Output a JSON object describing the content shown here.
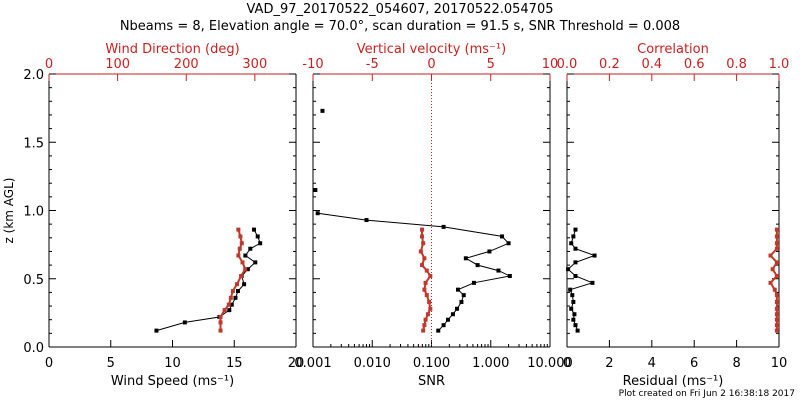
{
  "header": {
    "title": "VAD_97_20170522_054607, 20170522.054705",
    "subtitle": "Nbeams = 8, Elevation angle = 70.0°, scan duration = 91.5 s, SNR Threshold = 0.008"
  },
  "footer": "Plot created on Fri Jun  2 16:38:18 2017",
  "colors": {
    "axis": "#000000",
    "red_axis": "#cc1f1f",
    "red_series": "#c0392b",
    "black_series": "#000000"
  },
  "chart_data": [
    {
      "type": "line",
      "panel": "left",
      "ylabel": "z (km AGL)",
      "ylim": [
        0.0,
        2.0
      ],
      "yticks": [
        0.0,
        0.5,
        1.0,
        1.5,
        2.0
      ],
      "ytick_labels": [
        "0.0",
        "0.5",
        "1.0",
        "1.5",
        "2.0"
      ],
      "xlabel_bottom": "Wind Speed (ms⁻¹)",
      "xlim_bottom": [
        0,
        20
      ],
      "xticks_bottom": [
        0,
        5,
        10,
        15,
        20
      ],
      "xlabel_top": "Wind Direction (deg)",
      "xlim_top": [
        0,
        360
      ],
      "xticks_top": [
        0,
        100,
        200,
        300
      ],
      "series": [
        {
          "axis": "bottom",
          "color": "#000000",
          "z": [
            0.12,
            0.18,
            0.22,
            0.27,
            0.31,
            0.36,
            0.41,
            0.46,
            0.52,
            0.57,
            0.62,
            0.67,
            0.72,
            0.76,
            0.81,
            0.86
          ],
          "values": [
            8.7,
            11.0,
            13.8,
            14.6,
            14.8,
            15.1,
            15.3,
            15.8,
            15.6,
            16.1,
            16.7,
            15.9,
            16.3,
            17.1,
            16.9,
            16.6
          ]
        },
        {
          "axis": "top",
          "color": "#c0392b",
          "z": [
            0.12,
            0.18,
            0.22,
            0.27,
            0.31,
            0.36,
            0.41,
            0.46,
            0.52,
            0.57,
            0.62,
            0.67,
            0.72,
            0.76,
            0.81,
            0.86
          ],
          "values": [
            250,
            250,
            250,
            256,
            262,
            265,
            268,
            274,
            280,
            286,
            282,
            276,
            278,
            281,
            279,
            276
          ]
        }
      ]
    },
    {
      "type": "line",
      "panel": "middle",
      "ylim": [
        0.0,
        2.0
      ],
      "xlabel_bottom": "SNR",
      "xscale_bottom": "log",
      "xlim_bottom": [
        0.001,
        10.0
      ],
      "xticks_bottom": [
        0.001,
        0.01,
        0.1,
        1.0,
        10.0
      ],
      "xtick_labels_bottom": [
        "0.001",
        "0.010",
        "0.100",
        "1.000",
        "10.000"
      ],
      "xlabel_top": "Vertical velocity (ms⁻¹)",
      "xlim_top": [
        -10,
        10
      ],
      "xticks_top": [
        -10,
        -5,
        0,
        5,
        10
      ],
      "reference_line_top": 0,
      "series": [
        {
          "axis": "bottom",
          "color": "#000000",
          "z": [
            0.12,
            0.16,
            0.2,
            0.24,
            0.28,
            0.33,
            0.38,
            0.42,
            0.47,
            0.52,
            0.56,
            0.6,
            0.65,
            0.7,
            0.76,
            0.81,
            0.88,
            0.93,
            0.98
          ],
          "values": [
            0.13,
            0.16,
            0.19,
            0.23,
            0.27,
            0.32,
            0.35,
            0.28,
            0.52,
            2.1,
            1.35,
            0.6,
            0.38,
            0.95,
            2.0,
            1.55,
            0.16,
            0.008,
            0.0012
          ]
        },
        {
          "axis": "top",
          "color": "#000000",
          "markers_only": true,
          "z": [
            1.15,
            1.73
          ],
          "values": [
            -9.8,
            -9.2
          ]
        },
        {
          "axis": "top",
          "color": "#c0392b",
          "z": [
            0.12,
            0.16,
            0.2,
            0.24,
            0.28,
            0.33,
            0.38,
            0.42,
            0.47,
            0.52,
            0.56,
            0.6,
            0.65,
            0.7,
            0.76,
            0.81,
            0.86
          ],
          "values": [
            -0.7,
            -0.6,
            -0.5,
            -0.3,
            -0.1,
            -0.2,
            -0.4,
            -0.6,
            -0.5,
            -0.1,
            -0.4,
            -0.8,
            -0.6,
            -0.9,
            -0.7,
            -0.8,
            -0.8
          ]
        }
      ]
    },
    {
      "type": "line",
      "panel": "right",
      "ylim": [
        0.0,
        2.0
      ],
      "xlabel_bottom": "Residual (ms⁻¹)",
      "xlim_bottom": [
        0,
        10
      ],
      "xticks_bottom": [
        0,
        2,
        4,
        6,
        8,
        10
      ],
      "xlabel_top": "Correlation",
      "xlim_top": [
        0.0,
        1.0
      ],
      "xticks_top": [
        0.0,
        0.2,
        0.4,
        0.6,
        0.8,
        1.0
      ],
      "xtick_labels_top": [
        "0.0",
        "0.2",
        "0.4",
        "0.6",
        "0.8",
        "1.0"
      ],
      "series": [
        {
          "axis": "bottom",
          "color": "#000000",
          "z": [
            0.12,
            0.16,
            0.2,
            0.24,
            0.28,
            0.33,
            0.38,
            0.42,
            0.47,
            0.52,
            0.57,
            0.62,
            0.67,
            0.72,
            0.76,
            0.81,
            0.86
          ],
          "values": [
            0.5,
            0.4,
            0.3,
            0.35,
            0.2,
            0.3,
            0.25,
            0.15,
            1.2,
            0.4,
            0.05,
            0.4,
            1.3,
            0.4,
            0.2,
            0.3,
            0.4
          ]
        },
        {
          "axis": "top",
          "color": "#c0392b",
          "z": [
            0.12,
            0.16,
            0.2,
            0.24,
            0.28,
            0.33,
            0.38,
            0.42,
            0.47,
            0.52,
            0.57,
            0.62,
            0.67,
            0.72,
            0.76,
            0.81,
            0.86
          ],
          "values": [
            0.99,
            0.99,
            0.99,
            0.99,
            0.99,
            0.99,
            0.99,
            0.98,
            0.96,
            0.99,
            0.97,
            0.99,
            0.96,
            0.99,
            0.99,
            0.99,
            0.99
          ]
        }
      ]
    }
  ]
}
